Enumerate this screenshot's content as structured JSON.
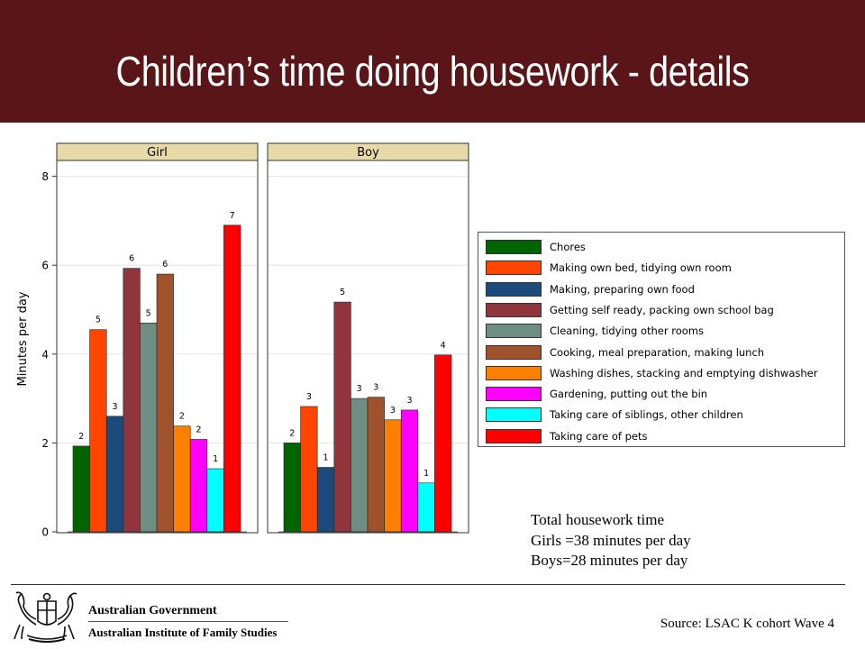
{
  "slide": {
    "title": "Children’s time doing housework - details"
  },
  "notes": {
    "line1": "Total housework time",
    "line2": "Girls =38 minutes per day",
    "line3": "Boys=28 minutes per day"
  },
  "footer": {
    "gov_name": "Australian Government",
    "institute": "Australian Institute of Family Studies",
    "source": "Source: LSAC K cohort Wave 4"
  },
  "chart_data": {
    "type": "bar",
    "ylabel": "Minutes per day",
    "ylim": [
      0,
      8.4
    ],
    "yticks": [
      0,
      2,
      4,
      6,
      8
    ],
    "grid": true,
    "legend_position": "right",
    "panels": [
      "Girl",
      "Boy"
    ],
    "series": [
      {
        "name": "Chores",
        "color": "#006400",
        "values": [
          1.93,
          2.0
        ],
        "labels": [
          "2",
          "2"
        ]
      },
      {
        "name": "Making own bed, tidying own room",
        "color": "#ff4500",
        "values": [
          4.55,
          2.82
        ],
        "labels": [
          "5",
          "3"
        ]
      },
      {
        "name": "Making, preparing own food",
        "color": "#1c4a7a",
        "values": [
          2.6,
          1.45
        ],
        "labels": [
          "3",
          "1"
        ]
      },
      {
        "name": "Getting self ready, packing own school bag",
        "color": "#90353b",
        "values": [
          5.93,
          5.17
        ],
        "labels": [
          "6",
          "5"
        ]
      },
      {
        "name": "Cleaning, tidying other rooms",
        "color": "#6e8e84",
        "values": [
          4.7,
          3.0
        ],
        "labels": [
          "5",
          "3"
        ]
      },
      {
        "name": "Cooking, meal preparation, making lunch",
        "color": "#a0522d",
        "values": [
          5.8,
          3.03
        ],
        "labels": [
          "6",
          "3"
        ]
      },
      {
        "name": "Washing dishes, stacking and emptying dishwasher",
        "color": "#ff7f00",
        "values": [
          2.38,
          2.52
        ],
        "labels": [
          "2",
          "3"
        ]
      },
      {
        "name": "Gardening, putting out the bin",
        "color": "#ff00ff",
        "values": [
          2.08,
          2.74
        ],
        "labels": [
          "2",
          "3"
        ]
      },
      {
        "name": "Taking care of siblings, other children",
        "color": "#00ffff",
        "values": [
          1.42,
          1.1
        ],
        "labels": [
          "1",
          "1"
        ]
      },
      {
        "name": "Taking care of pets",
        "color": "#ff0000",
        "values": [
          6.9,
          3.98
        ],
        "labels": [
          "7",
          "4"
        ]
      }
    ]
  }
}
